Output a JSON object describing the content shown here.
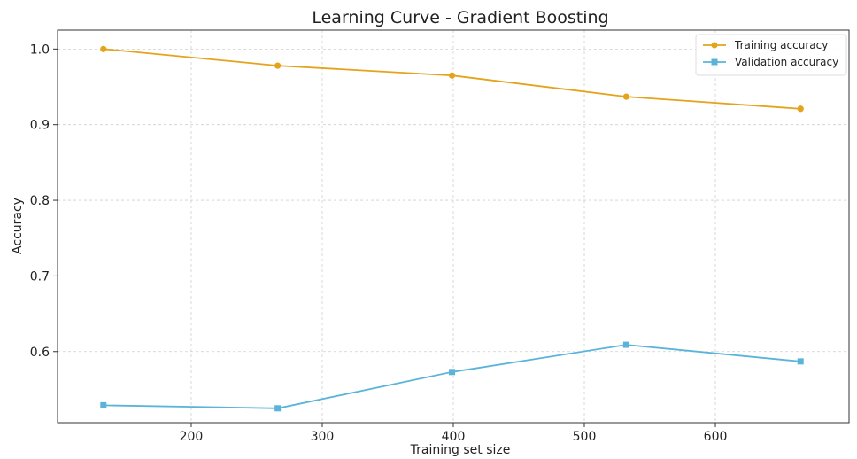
{
  "chart_data": {
    "type": "line",
    "title": "Learning Curve - Gradient Boosting",
    "xlabel": "Training set size",
    "ylabel": "Accuracy",
    "xlim": [
      98,
      702
    ],
    "ylim": [
      0.506,
      1.025
    ],
    "xticks": [
      200,
      300,
      400,
      500,
      600
    ],
    "yticks": [
      0.6,
      0.7,
      0.8,
      0.9,
      1.0
    ],
    "xtick_labels": [
      "200",
      "300",
      "400",
      "500",
      "600"
    ],
    "ytick_labels": [
      "0.6",
      "0.7",
      "0.8",
      "0.9",
      "1.0"
    ],
    "grid": true,
    "legend_position": "top-right",
    "x": [
      133,
      266,
      399,
      532,
      665
    ],
    "series": [
      {
        "name": "Training accuracy",
        "color": "#e5a31c",
        "marker": "circle",
        "values": [
          1.0,
          0.978,
          0.965,
          0.937,
          0.921
        ]
      },
      {
        "name": "Validation accuracy",
        "color": "#5ab4da",
        "marker": "square",
        "values": [
          0.529,
          0.525,
          0.573,
          0.609,
          0.587
        ]
      }
    ]
  }
}
